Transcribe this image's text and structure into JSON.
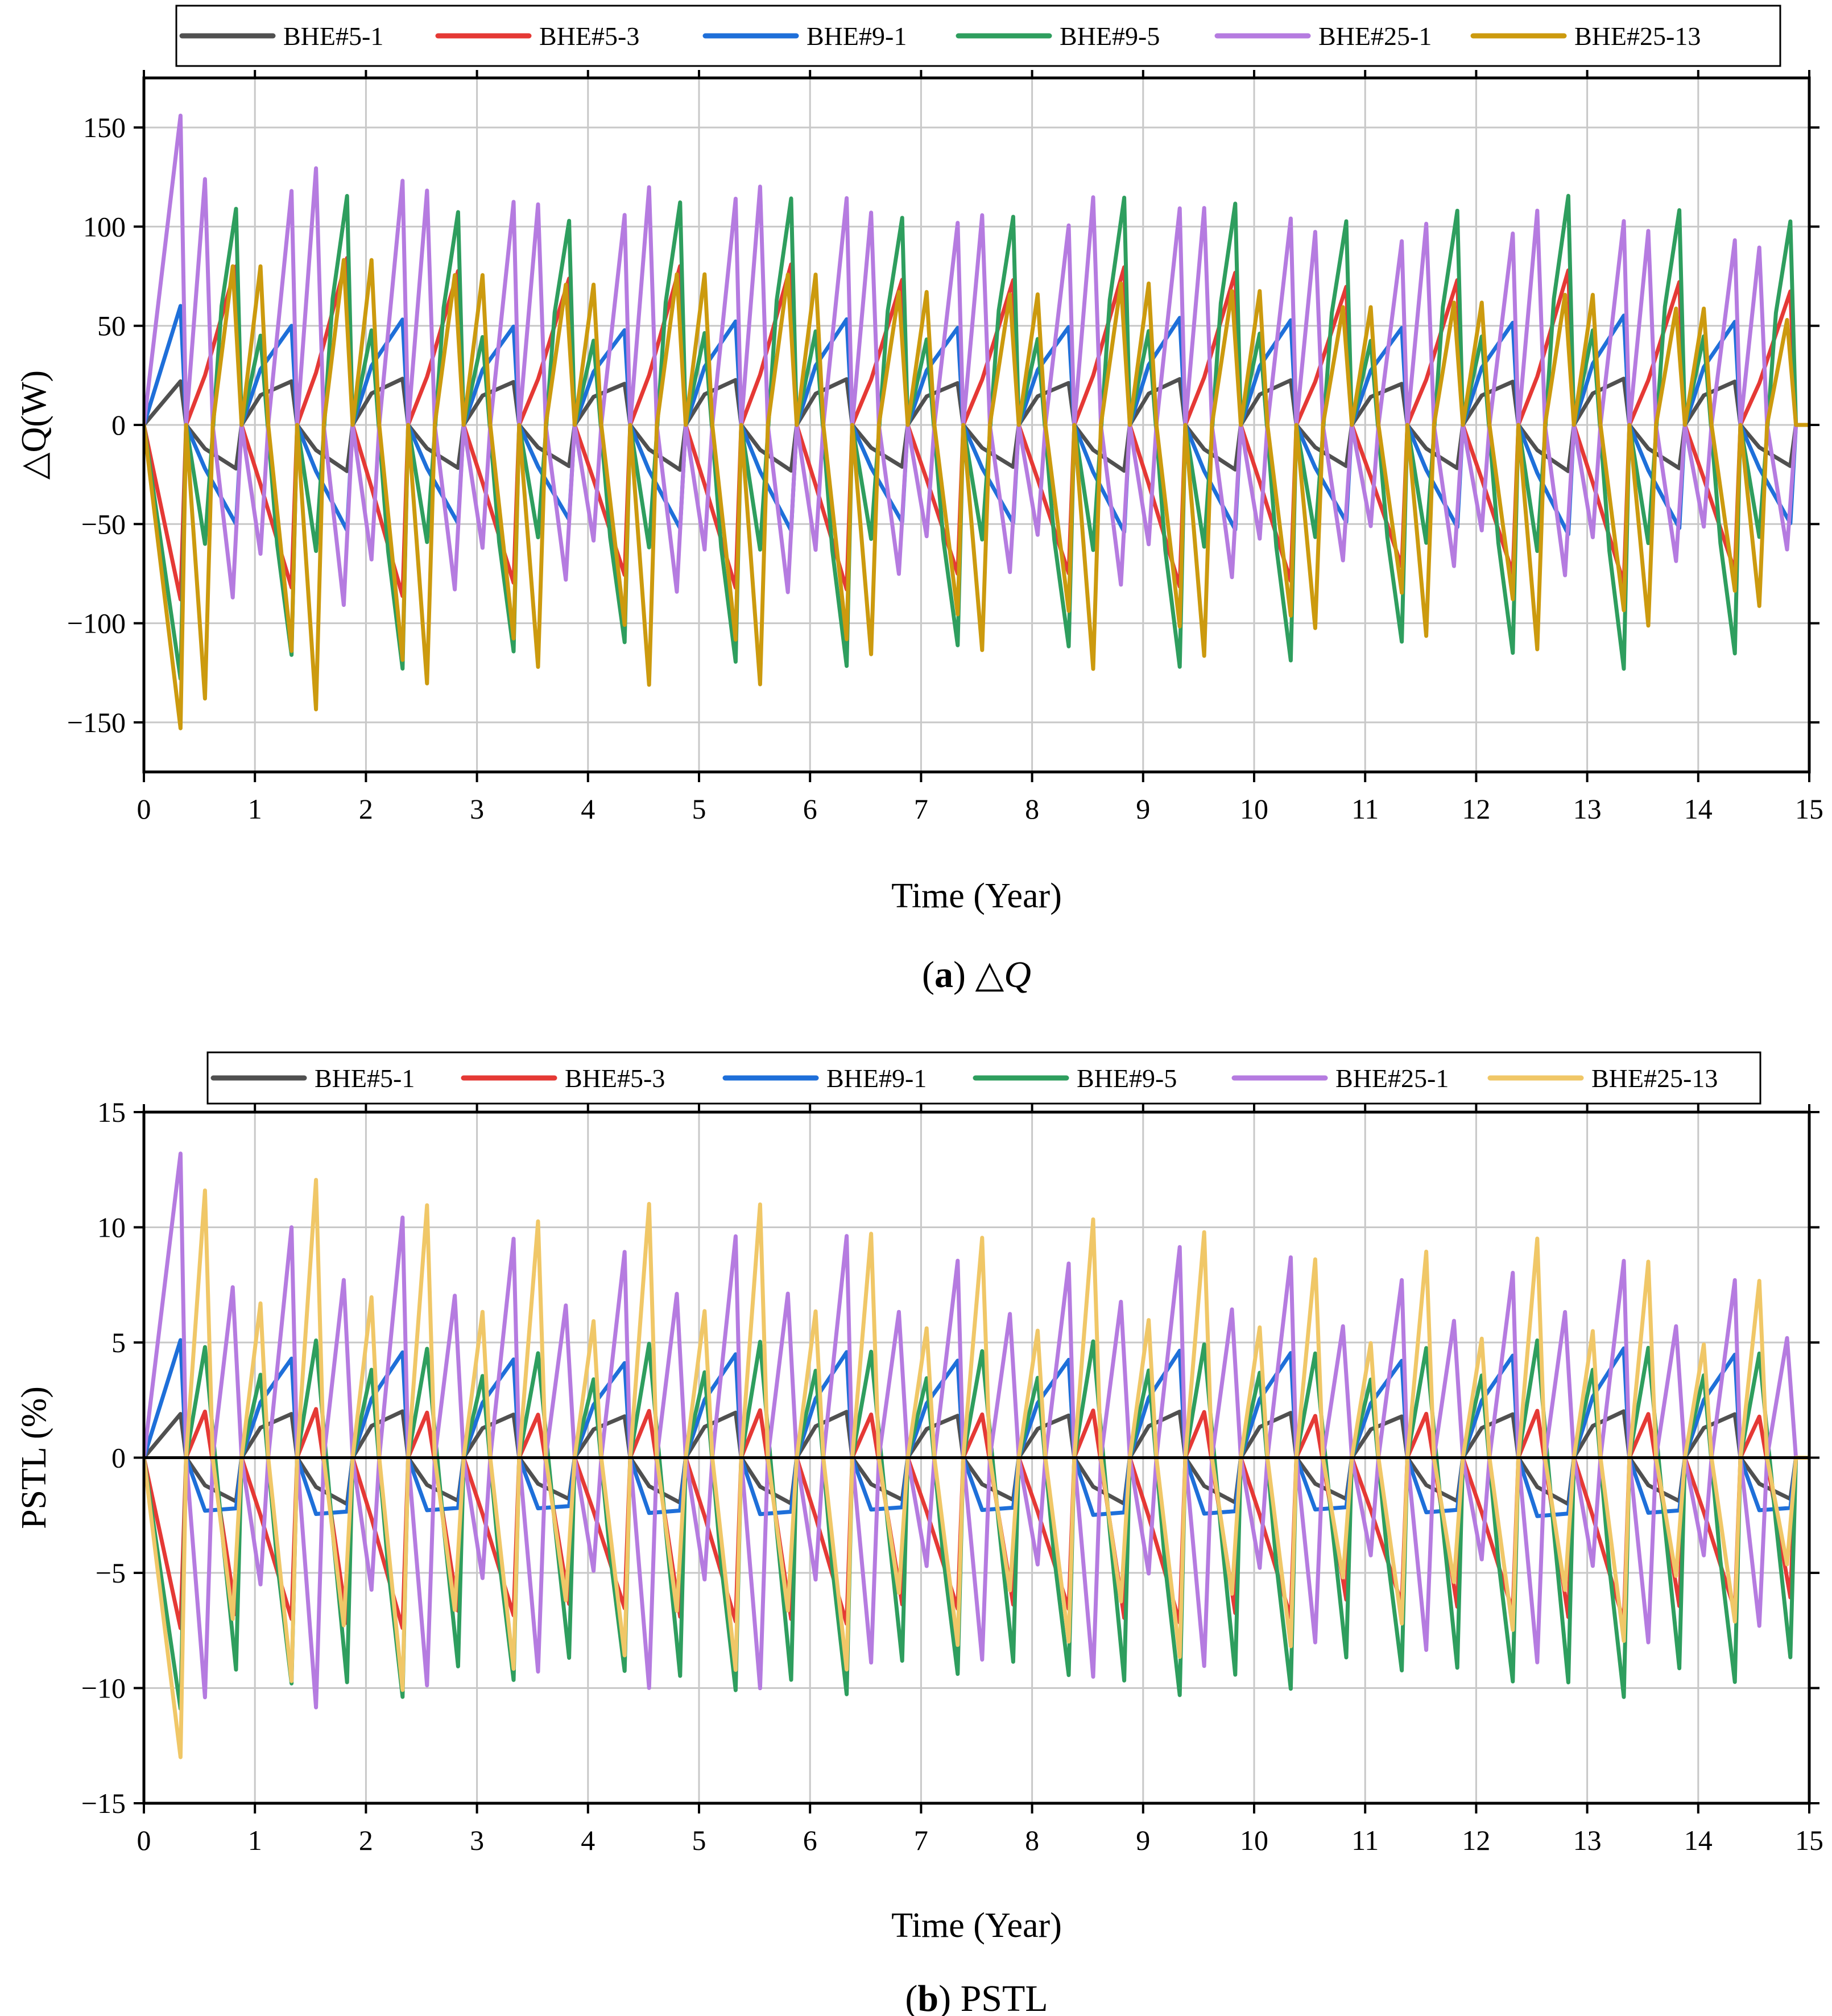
{
  "chart_data": [
    {
      "type": "line",
      "panel": "a",
      "caption_letter": "a",
      "caption_text": "△Q",
      "xlabel": "Time (Year)",
      "ylabel": "△Q(W)",
      "xlim": [
        0,
        15
      ],
      "ylim": [
        -175,
        175
      ],
      "xticks": [
        0,
        1,
        2,
        3,
        4,
        5,
        6,
        7,
        8,
        9,
        10,
        11,
        12,
        13,
        14,
        15
      ],
      "xtick_labels": [
        "0",
        "1",
        "2",
        "3",
        "4",
        "5",
        "6",
        "7",
        "8",
        "9",
        "10",
        "11",
        "12",
        "13",
        "14",
        "15"
      ],
      "yticks": [
        -150,
        -100,
        -50,
        0,
        50,
        100,
        150
      ],
      "ytick_labels": [
        "−150",
        "−100",
        "−50",
        "0",
        "50",
        "100",
        "150"
      ],
      "grid": true,
      "legend_placement": "top",
      "series": [
        {
          "name": "BHE#5-1",
          "color": "#505050",
          "start": [
            [
              0,
              0
            ],
            [
              0.33,
              22
            ]
          ],
          "cycle": [
            [
              0.33,
              22
            ],
            [
              0.38,
              0
            ],
            [
              0.55,
              -12
            ],
            [
              0.83,
              -22
            ],
            [
              0.88,
              0
            ],
            [
              1.05,
              15
            ],
            [
              1.33,
              22
            ]
          ],
          "amp_end": 1.0
        },
        {
          "name": "BHE#5-3",
          "color": "#e53935",
          "start": [
            [
              0,
              0
            ],
            [
              0.33,
              -88
            ]
          ],
          "cycle": [
            [
              0.33,
              -88
            ],
            [
              0.38,
              0
            ],
            [
              0.55,
              25
            ],
            [
              0.83,
              80
            ],
            [
              0.88,
              0
            ],
            [
              1.05,
              -30
            ],
            [
              1.33,
              -82
            ]
          ],
          "amp_end": 0.9
        },
        {
          "name": "BHE#9-1",
          "color": "#1e6fd9",
          "start": [
            [
              0,
              0
            ],
            [
              0.33,
              60
            ]
          ],
          "cycle": [
            [
              0.33,
              60
            ],
            [
              0.38,
              0
            ],
            [
              0.55,
              -22
            ],
            [
              0.83,
              -50
            ],
            [
              0.88,
              0
            ],
            [
              1.05,
              28
            ],
            [
              1.33,
              50
            ]
          ],
          "amp_end": 1.05
        },
        {
          "name": "BHE#9-5",
          "color": "#2e9e5e",
          "start": [
            [
              0,
              0
            ],
            [
              0.33,
              -128
            ]
          ],
          "cycle": [
            [
              0.33,
              -128
            ],
            [
              0.38,
              0
            ],
            [
              0.55,
              -60
            ],
            [
              0.7,
              60
            ],
            [
              0.83,
              109
            ],
            [
              0.88,
              0
            ],
            [
              1.05,
              45
            ],
            [
              1.2,
              -60
            ],
            [
              1.33,
              -116
            ]
          ],
          "amp_end": 1.0
        },
        {
          "name": "BHE#25-1",
          "color": "#b57be0",
          "start": [
            [
              0,
              0
            ],
            [
              0.33,
              156
            ]
          ],
          "cycle": [
            [
              0.33,
              156
            ],
            [
              0.38,
              0
            ],
            [
              0.55,
              124
            ],
            [
              0.62,
              0
            ],
            [
              0.8,
              -87
            ],
            [
              0.88,
              0
            ],
            [
              1.05,
              -65
            ],
            [
              1.12,
              0
            ],
            [
              1.33,
              118
            ]
          ],
          "amp_end": 0.78
        },
        {
          "name": "BHE#25-13",
          "color": "#cc9a0e",
          "start": [
            [
              0,
              0
            ],
            [
              0.33,
              -153
            ]
          ],
          "cycle": [
            [
              0.33,
              -153
            ],
            [
              0.38,
              0
            ],
            [
              0.55,
              -138
            ],
            [
              0.62,
              0
            ],
            [
              0.8,
              80
            ],
            [
              0.88,
              0
            ],
            [
              1.05,
              80
            ],
            [
              1.12,
              0
            ],
            [
              1.33,
              -114
            ]
          ],
          "amp_end": 0.72
        }
      ]
    },
    {
      "type": "line",
      "panel": "b",
      "caption_letter": "b",
      "caption_text": "PSTL",
      "xlabel": "Time (Year)",
      "ylabel": "PSTL (%)",
      "xlim": [
        0,
        15
      ],
      "ylim": [
        -15,
        15
      ],
      "xticks": [
        0,
        1,
        2,
        3,
        4,
        5,
        6,
        7,
        8,
        9,
        10,
        11,
        12,
        13,
        14,
        15
      ],
      "xtick_labels": [
        "0",
        "1",
        "2",
        "3",
        "4",
        "5",
        "6",
        "7",
        "8",
        "9",
        "10",
        "11",
        "12",
        "13",
        "14",
        "15"
      ],
      "yticks": [
        -15,
        -10,
        -5,
        0,
        5,
        10,
        15
      ],
      "ytick_labels": [
        "−15",
        "−10",
        "−5",
        "0",
        "5",
        "10",
        "15"
      ],
      "grid": true,
      "zero_line": true,
      "legend_placement": "top",
      "series": [
        {
          "name": "BHE#5-1",
          "color": "#505050",
          "start": [
            [
              0,
              0
            ],
            [
              0.33,
              1.9
            ]
          ],
          "cycle": [
            [
              0.33,
              1.9
            ],
            [
              0.38,
              0
            ],
            [
              0.55,
              -1.2
            ],
            [
              0.83,
              -1.9
            ],
            [
              0.88,
              0
            ],
            [
              1.05,
              1.3
            ],
            [
              1.33,
              1.9
            ]
          ],
          "amp_end": 1.0
        },
        {
          "name": "BHE#5-3",
          "color": "#e53935",
          "start": [
            [
              0,
              0
            ],
            [
              0.33,
              -7.4
            ]
          ],
          "cycle": [
            [
              0.33,
              -7.4
            ],
            [
              0.38,
              0
            ],
            [
              0.55,
              2.0
            ],
            [
              0.83,
              -6.8
            ],
            [
              0.88,
              0
            ],
            [
              1.05,
              -2.5
            ],
            [
              1.33,
              -7.0
            ]
          ],
          "amp_end": 0.95
        },
        {
          "name": "BHE#9-1",
          "color": "#1e6fd9",
          "start": [
            [
              0,
              0
            ],
            [
              0.33,
              5.1
            ]
          ],
          "cycle": [
            [
              0.33,
              5.1
            ],
            [
              0.38,
              0
            ],
            [
              0.55,
              -2.3
            ],
            [
              0.83,
              -2.2
            ],
            [
              0.88,
              0
            ],
            [
              1.05,
              2.4
            ],
            [
              1.33,
              4.3
            ]
          ],
          "amp_end": 1.05
        },
        {
          "name": "BHE#9-5",
          "color": "#2e9e5e",
          "start": [
            [
              0,
              0
            ],
            [
              0.33,
              -10.9
            ]
          ],
          "cycle": [
            [
              0.33,
              -10.9
            ],
            [
              0.38,
              0
            ],
            [
              0.55,
              4.8
            ],
            [
              0.7,
              -3.0
            ],
            [
              0.83,
              -9.2
            ],
            [
              0.88,
              0
            ],
            [
              1.05,
              3.6
            ],
            [
              1.2,
              -4.5
            ],
            [
              1.33,
              -9.8
            ]
          ],
          "amp_end": 1.0
        },
        {
          "name": "BHE#25-1",
          "color": "#b57be0",
          "start": [
            [
              0,
              0
            ],
            [
              0.33,
              13.2
            ]
          ],
          "cycle": [
            [
              0.33,
              13.2
            ],
            [
              0.38,
              0
            ],
            [
              0.55,
              -10.4
            ],
            [
              0.62,
              0
            ],
            [
              0.8,
              7.4
            ],
            [
              0.88,
              0
            ],
            [
              1.05,
              -5.5
            ],
            [
              1.12,
              0
            ],
            [
              1.33,
              10.0
            ]
          ],
          "amp_end": 0.76
        },
        {
          "name": "BHE#25-13",
          "color": "#f0c767",
          "start": [
            [
              0,
              0
            ],
            [
              0.33,
              -13.0
            ]
          ],
          "cycle": [
            [
              0.33,
              -13.0
            ],
            [
              0.38,
              0
            ],
            [
              0.55,
              11.6
            ],
            [
              0.62,
              0
            ],
            [
              0.8,
              -7.0
            ],
            [
              0.88,
              0
            ],
            [
              1.05,
              6.7
            ],
            [
              1.12,
              0
            ],
            [
              1.33,
              -9.7
            ]
          ],
          "amp_end": 0.72
        }
      ]
    }
  ]
}
